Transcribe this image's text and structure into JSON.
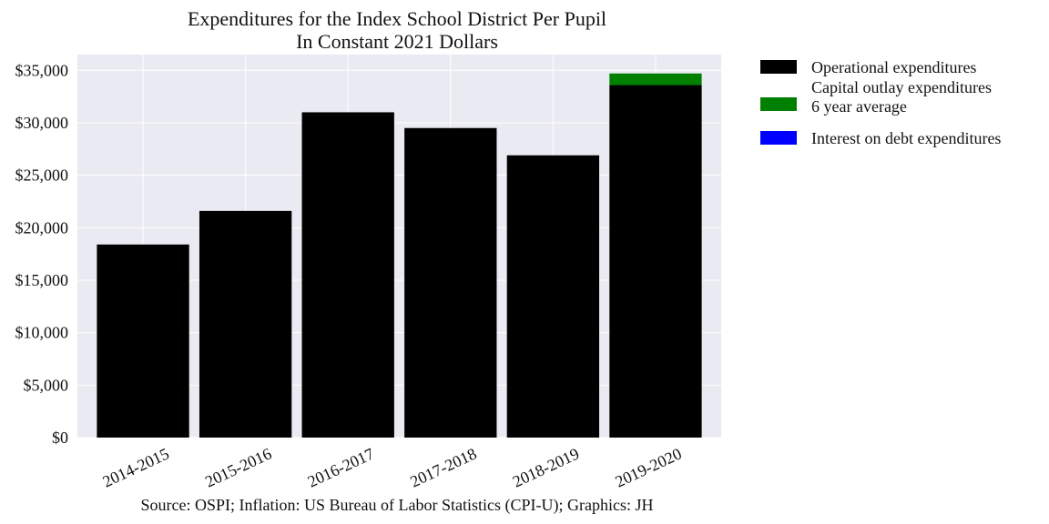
{
  "chart_data": {
    "type": "bar",
    "stacked": true,
    "title": "Expenditures for the Index School District Per Pupil",
    "subtitle": "In Constant 2021 Dollars",
    "categories": [
      "2014-2015",
      "2015-2016",
      "2016-2017",
      "2017-2018",
      "2018-2019",
      "2019-2020"
    ],
    "series": [
      {
        "name": "Operational expenditures",
        "color": "#000000",
        "values": [
          18400,
          21600,
          31000,
          29500,
          26900,
          33600
        ]
      },
      {
        "name": "Capital outlay expenditures\n6 year average",
        "color": "#008000",
        "values": [
          0,
          0,
          0,
          0,
          0,
          1100
        ]
      },
      {
        "name": "Interest on debt expenditures",
        "color": "#0000ff",
        "values": [
          0,
          0,
          0,
          0,
          0,
          0
        ]
      }
    ],
    "ylim": [
      0,
      36500
    ],
    "y_ticks": [
      0,
      5000,
      10000,
      15000,
      20000,
      25000,
      30000,
      35000
    ],
    "y_tick_labels": [
      "$0",
      "$5,000",
      "$10,000",
      "$15,000",
      "$20,000",
      "$25,000",
      "$30,000",
      "$35,000"
    ],
    "xlabel": "",
    "ylabel": "",
    "grid": true,
    "plot_background": "#eaeaf2",
    "grid_color": "#ffffff",
    "legend_position": "outside-right",
    "source_note": "Source: OSPI; Inflation: US Bureau of Labor Statistics (CPI-U); Graphics: JH"
  }
}
